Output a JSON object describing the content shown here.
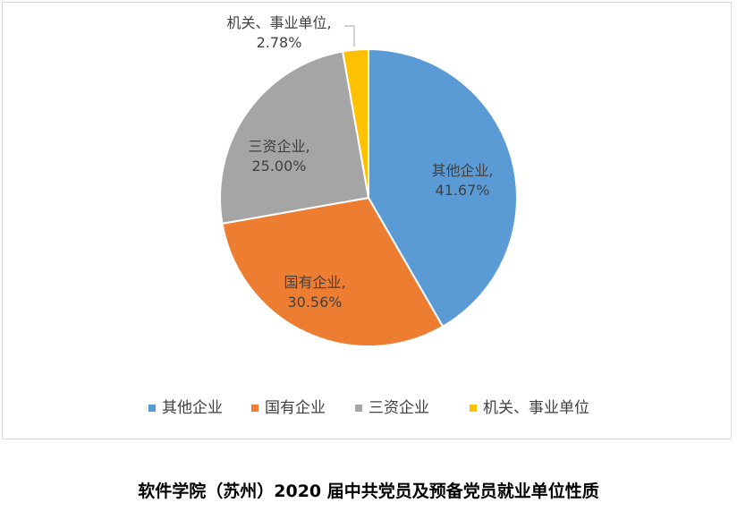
{
  "chart_data": {
    "type": "pie",
    "categories": [
      "其他企业",
      "国有企业",
      "三资企业",
      "机关、事业单位"
    ],
    "values": [
      41.67,
      30.56,
      25.0,
      2.78
    ],
    "labels": [
      {
        "name": "其他企业,",
        "pct": "41.67%"
      },
      {
        "name": "国有企业,",
        "pct": "30.56%"
      },
      {
        "name": "三资企业,",
        "pct": "25.00%"
      },
      {
        "name": "机关、事业单位,",
        "pct": "2.78%"
      }
    ],
    "colors": [
      "#5b9bd5",
      "#ed7d31",
      "#a5a5a5",
      "#ffc000"
    ],
    "legend_position": "bottom",
    "start_angle_deg": 0,
    "direction": "clockwise"
  },
  "caption": "软件学院（苏州）2020 届中共党员及预备党员就业单位性质"
}
